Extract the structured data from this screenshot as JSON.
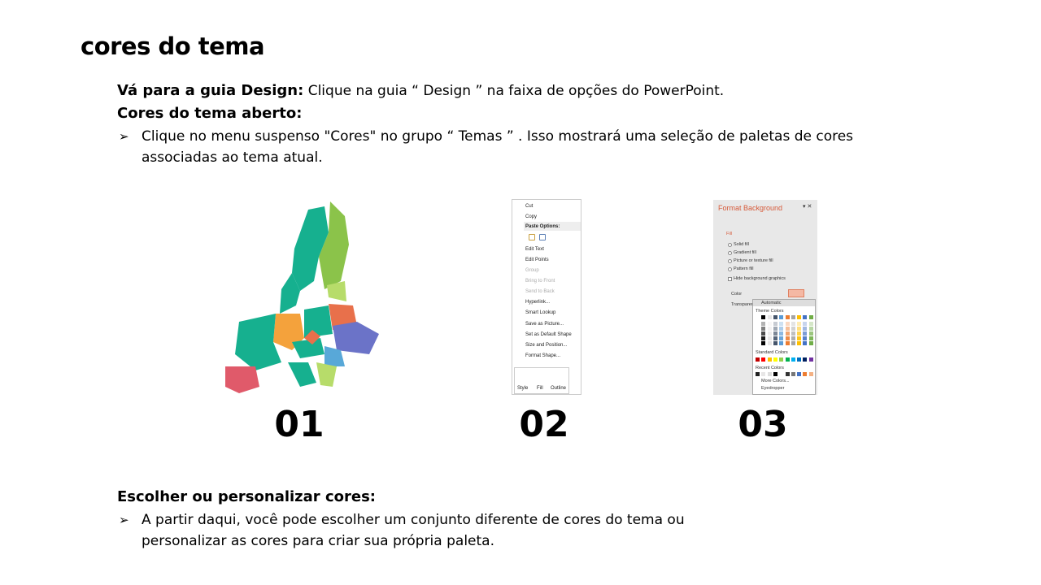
{
  "title": "cores do tema",
  "step1": {
    "label": "Vá para a guia Design:",
    "text": " Clique na guia “ Design ” na faixa de opções do PowerPoint."
  },
  "step2": {
    "label": "Cores do tema aberto:",
    "bullet": "Clique no menu suspenso \"Cores\" no grupo “ Temas ” . Isso mostrará uma seleção de paletas de cores",
    "bullet_cont": "associadas ao tema atual."
  },
  "step3": {
    "label": "Escolher ou personalizar cores:",
    "bullet": "A partir daqui, você pode escolher um conjunto diferente de cores do tema ou",
    "bullet_cont": "personalizar as cores para criar sua própria paleta."
  },
  "bullet_icon": "arrow-bullet-icon",
  "images": {
    "labels": [
      "01",
      "02",
      "03"
    ]
  },
  "context_menu": {
    "items": [
      "Cut",
      "Copy",
      "Paste Options:",
      "Edit Text",
      "Edit Points",
      "Group",
      "Bring to Front",
      "Send to Back",
      "Hyperlink...",
      "Smart Lookup",
      "Save as Picture...",
      "Set as Default Shape",
      "Size and Position...",
      "Format Shape..."
    ],
    "toolbar": [
      "Style",
      "Fill",
      "Outline"
    ]
  },
  "format_panel": {
    "title": "Format Background",
    "section": "Fill",
    "options": [
      "Solid fill",
      "Gradient fill",
      "Picture or texture fill",
      "Pattern fill"
    ],
    "checkbox": "Hide background graphics",
    "color_label": "Color",
    "transparency_label": "Transparen",
    "palette": {
      "automatic": "Automatic",
      "theme": "Theme Colors",
      "standard": "Standard Colors",
      "recent": "Recent Colors",
      "more": "More Colors...",
      "eyedropper": "Eyedropper"
    },
    "theme_colors": [
      "#ffffff",
      "#000000",
      "#e7e6e6",
      "#44546a",
      "#5b9bd5",
      "#ed7d31",
      "#a5a5a5",
      "#ffc000",
      "#4472c4",
      "#70ad47"
    ],
    "standard_colors": [
      "#c00000",
      "#ff0000",
      "#ffc000",
      "#ffff00",
      "#92d050",
      "#00b050",
      "#00b0f0",
      "#0070c0",
      "#002060",
      "#7030a0"
    ],
    "recent_colors": [
      "#222222",
      "#e7e6e6",
      "#dddddd",
      "#000000",
      "#ffffff",
      "#333333",
      "#777777",
      "#4472c4",
      "#ed7d31",
      "#f4b183"
    ]
  },
  "map_colors": [
    "#16b08f",
    "#8bc34a",
    "#f4a23c",
    "#6b73c8",
    "#e8704b",
    "#e05a6a",
    "#58a8d8",
    "#b7dc6a"
  ]
}
